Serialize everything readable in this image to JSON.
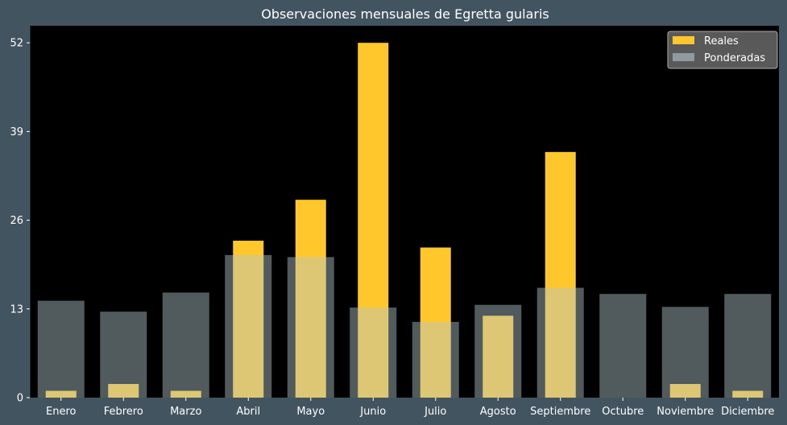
{
  "chart_data": {
    "type": "bar",
    "title": "Observaciones mensuales de Egretta gularis",
    "xlabel": "",
    "ylabel": "",
    "categories": [
      "Enero",
      "Febrero",
      "Marzo",
      "Abril",
      "Mayo",
      "Junio",
      "Julio",
      "Agosto",
      "Septiembre",
      "Octubre",
      "Noviembre",
      "Diciembre"
    ],
    "series": [
      {
        "name": "Reales",
        "color": "#ffc72c",
        "values": [
          1,
          2,
          1,
          23,
          29,
          52,
          22,
          12,
          36,
          0,
          2,
          1
        ]
      },
      {
        "name": "Ponderadas",
        "color": "#b4c8cd",
        "values": [
          14.2,
          12.6,
          15.4,
          20.9,
          20.6,
          13.2,
          11.1,
          13.6,
          16.1,
          15.2,
          13.3,
          15.2
        ]
      }
    ],
    "yticks": [
      0,
      13,
      26,
      39,
      52
    ],
    "ylim": [
      0,
      54.5
    ],
    "legend_position": "top-right",
    "grid": false,
    "background_color": "#000000",
    "figure_color": "#41545f"
  }
}
